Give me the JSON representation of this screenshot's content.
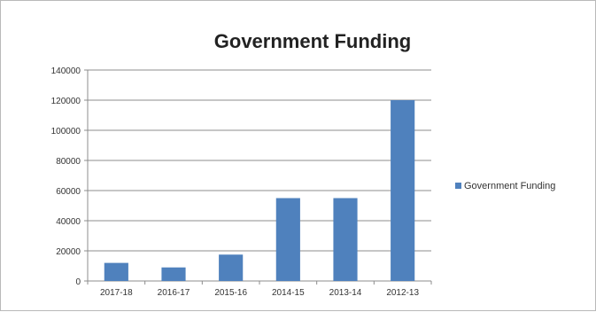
{
  "chart_data": {
    "type": "bar",
    "title": "Government Funding",
    "categories": [
      "2017-18",
      "2016-17",
      "2015-16",
      "2014-15",
      "2013-14",
      "2012-13"
    ],
    "series": [
      {
        "name": "Government Funding",
        "values": [
          12000,
          9000,
          17500,
          55000,
          55000,
          120000
        ],
        "color": "#4f81bd"
      }
    ],
    "y_ticks": [
      0,
      20000,
      40000,
      60000,
      80000,
      100000,
      120000,
      140000
    ],
    "y_tick_labels": [
      "0",
      "20000",
      "40000",
      "60000",
      "80000",
      "100000",
      "120000",
      "140000"
    ],
    "ylim": [
      0,
      140000
    ],
    "xlabel": "",
    "ylabel": "",
    "grid": true,
    "legend": "right"
  }
}
